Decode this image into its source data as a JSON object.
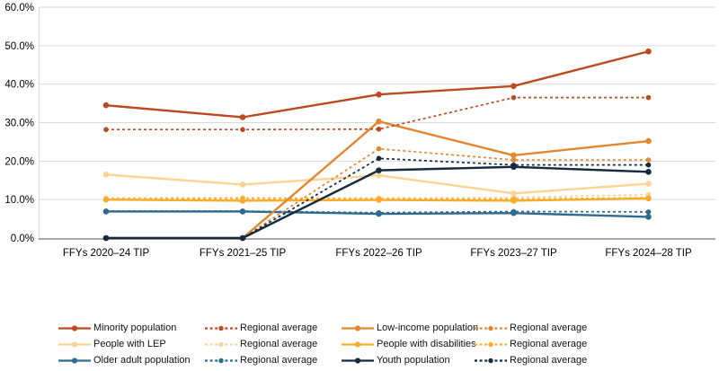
{
  "chart_data": {
    "type": "line",
    "title": "",
    "categories": [
      "FFYs 2020–24 TIP",
      "FFYs 2021–25 TIP",
      "FFYs 2022–26 TIP",
      "FFYs 2023–27 TIP",
      "FFYs 2024–28 TIP"
    ],
    "y_axis": {
      "min": 0,
      "max": 60,
      "step": 10,
      "tick_labels": [
        "0.0%",
        "10.0%",
        "20.0%",
        "30.0%",
        "40.0%",
        "50.0%",
        "60.0%"
      ]
    },
    "grid": true,
    "legend_position": "bottom",
    "series": [
      {
        "id": "minority",
        "legend_label": "Minority population",
        "style": "solid",
        "color": "#BC4A21",
        "values": [
          34.5,
          31.4,
          37.3,
          39.5,
          48.5
        ]
      },
      {
        "id": "minority_avg",
        "legend_label": "Regional average",
        "style": "dashed",
        "color": "#BC4A21",
        "values": [
          28.2,
          28.2,
          28.3,
          36.5,
          36.5
        ]
      },
      {
        "id": "low_income",
        "legend_label": "Low-income population",
        "style": "solid",
        "color": "#E1872F",
        "values": [
          0.0,
          0.0,
          30.3,
          21.5,
          25.2
        ]
      },
      {
        "id": "low_income_avg",
        "legend_label": "Regional average",
        "style": "dashed",
        "color": "#E1872F",
        "values": [
          0.0,
          0.0,
          23.2,
          20.3,
          20.3
        ]
      },
      {
        "id": "lep",
        "legend_label": "People with LEP",
        "style": "solid",
        "color": "#FBD394",
        "values": [
          16.5,
          13.9,
          16.3,
          11.6,
          14.1
        ]
      },
      {
        "id": "lep_avg",
        "legend_label": "Regional average",
        "style": "dashed",
        "color": "#FBD394",
        "values": [
          10.4,
          10.5,
          10.4,
          10.5,
          11.3
        ]
      },
      {
        "id": "disabilities",
        "legend_label": "People with disabilities",
        "style": "solid",
        "color": "#F9AC29",
        "values": [
          10.0,
          9.7,
          9.9,
          9.7,
          10.3
        ]
      },
      {
        "id": "disabilities_avg",
        "legend_label": "Regional average",
        "style": "dashed",
        "color": "#F9AC29",
        "values": [
          10.2,
          10.3,
          10.2,
          10.1,
          10.5
        ]
      },
      {
        "id": "older_adult",
        "legend_label": "Older adult population",
        "style": "solid",
        "color": "#2E6B8F",
        "values": [
          6.9,
          6.9,
          6.3,
          6.5,
          5.5
        ]
      },
      {
        "id": "older_adult_avg",
        "legend_label": "Regional average",
        "style": "dashed",
        "color": "#2E6B8F",
        "values": [
          7.0,
          7.0,
          6.6,
          6.9,
          6.8
        ]
      },
      {
        "id": "youth",
        "legend_label": "Youth population",
        "style": "solid",
        "color": "#16293F",
        "values": [
          0.0,
          0.0,
          17.6,
          18.5,
          17.2
        ]
      },
      {
        "id": "youth_avg",
        "legend_label": "Regional average",
        "style": "dashed",
        "color": "#16293F",
        "values": [
          0.0,
          0.0,
          20.7,
          19.0,
          19.0
        ]
      }
    ],
    "legend_rows": [
      [
        0,
        1,
        2,
        3
      ],
      [
        4,
        5,
        6,
        7
      ],
      [
        8,
        9,
        10,
        11
      ]
    ]
  },
  "style_colors": {
    "gridline": "#D9D9D9",
    "axis_line": "#A6A6A6",
    "text": "#000000"
  }
}
